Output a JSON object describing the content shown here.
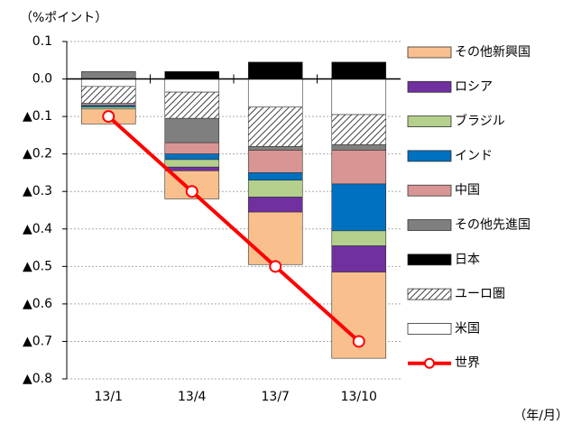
{
  "chart_data": {
    "type": "stacked_bar_line",
    "y_axis_label": "（%ポイント）",
    "x_axis_label": "（年/月）",
    "categories": [
      "13/1",
      "13/4",
      "13/7",
      "13/10"
    ],
    "ylim": [
      -0.8,
      0.1
    ],
    "yticks": [
      0.1,
      {
        "value": 0,
        "label": "0.0"
      },
      {
        "value": -0.1,
        "label": "▲0.1"
      },
      {
        "value": -0.2,
        "label": "▲0.2"
      },
      {
        "value": -0.3,
        "label": "▲0.3"
      },
      {
        "value": -0.4,
        "label": "▲0.4"
      },
      {
        "value": -0.5,
        "label": "▲0.5"
      },
      {
        "value": -0.6,
        "label": "▲0.6"
      },
      {
        "value": -0.7,
        "label": "▲0.7"
      },
      {
        "value": -0.8,
        "label": "▲0.8"
      }
    ],
    "grid": true,
    "series": [
      {
        "name": "米国",
        "color": "#ffffff",
        "values": [
          -0.02,
          -0.035,
          -0.075,
          -0.095
        ]
      },
      {
        "name": "ユーロ圏",
        "color": "#404040",
        "pattern": "hatch",
        "values": [
          -0.045,
          -0.07,
          -0.105,
          -0.08
        ]
      },
      {
        "name": "日本",
        "color": "#000000",
        "values": [
          0,
          0.02,
          0.045,
          0.045
        ]
      },
      {
        "name": "その他先進国",
        "color": "#7f7f7f",
        "values": [
          0.02,
          -0.065,
          -0.01,
          -0.015
        ]
      },
      {
        "name": "中国",
        "color": "#d99594",
        "values": [
          -0.005,
          -0.03,
          -0.06,
          -0.09
        ]
      },
      {
        "name": "インド",
        "color": "#0070c0",
        "values": [
          -0.005,
          -0.015,
          -0.02,
          -0.125
        ]
      },
      {
        "name": "ブラジル",
        "color": "#b4d08c",
        "values": [
          -0.005,
          -0.02,
          -0.045,
          -0.04
        ]
      },
      {
        "name": "ロシア",
        "color": "#7030a0",
        "values": [
          0,
          -0.01,
          -0.04,
          -0.07
        ]
      },
      {
        "name": "その他新興国",
        "color": "#f9c08e",
        "values": [
          -0.04,
          -0.075,
          -0.14,
          -0.23
        ]
      }
    ],
    "line": {
      "name": "世界",
      "color": "#ff0000",
      "values": [
        -0.1,
        -0.3,
        -0.5,
        -0.7
      ]
    }
  }
}
